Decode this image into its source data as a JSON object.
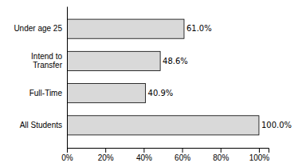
{
  "chart_data": {
    "type": "bar",
    "orientation": "horizontal",
    "categories": [
      "All Students",
      "Full-Time",
      "Intend to\nTransfer",
      "Under age 25"
    ],
    "values": [
      100.0,
      40.9,
      48.6,
      61.0
    ],
    "value_labels": [
      "100.0%",
      "40.9%",
      "48.6%",
      "61.0%"
    ],
    "data_labels": true,
    "color": "#d9d9d9",
    "xlim": [
      0,
      105
    ],
    "xticks": [
      {
        "value": 0,
        "label": "0%"
      },
      {
        "value": 20,
        "label": "20%"
      },
      {
        "value": 40,
        "label": "40%"
      },
      {
        "value": 60,
        "label": "60%"
      },
      {
        "value": 80,
        "label": "80%"
      },
      {
        "value": 100,
        "label": "100%"
      }
    ],
    "grid": false
  }
}
